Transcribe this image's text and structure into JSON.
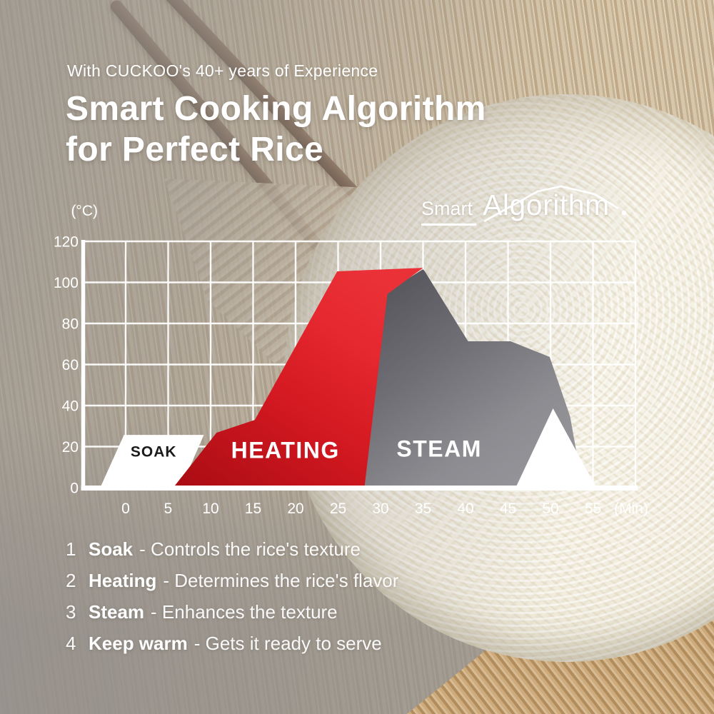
{
  "header": {
    "subtitle": "With CUCKOO's 40+ years of Experience",
    "title_line1": "Smart Cooking Algorithm",
    "title_line2": "for Perfect Rice"
  },
  "logo": {
    "small": "Smart",
    "large": "Algorithm"
  },
  "colors": {
    "heating_red": "#da1f26",
    "heating_red_dark": "#a90c14",
    "steam_gray_dark": "#55545a",
    "steam_gray_light": "#98979c",
    "soak_white": "#ffffff",
    "text_white": "#ffffff",
    "soak_label_black": "#1b1b1b"
  },
  "chart_data": {
    "type": "area",
    "title": "Smart Algorithm",
    "ylabel": "(°C)",
    "xlabel": "(Min)",
    "xlim": [
      -5,
      60
    ],
    "ylim": [
      0,
      120
    ],
    "x_ticks": [
      0,
      5,
      10,
      15,
      20,
      25,
      30,
      35,
      40,
      45,
      50,
      55
    ],
    "y_ticks": [
      0,
      20,
      40,
      60,
      80,
      100,
      120
    ],
    "grid": true,
    "phases": [
      {
        "name": "SOAK",
        "fill": "white",
        "label_color": "#1b1b1b",
        "label_pos": [
          3.3,
          17.8
        ],
        "time_range_min": [
          0,
          6
        ],
        "peak_temp_c": 26,
        "points": [
          [
            -3.0,
            0
          ],
          [
            -0.2,
            25.7
          ],
          [
            9.2,
            25.7
          ],
          [
            6.5,
            0
          ]
        ]
      },
      {
        "name": "STEAM",
        "fill": "gray-gradient",
        "label_color": "#ffffff",
        "label_pos": [
          36.9,
          19.2
        ],
        "time_range_min": [
          28,
          53
        ],
        "peak_temp_c": 106,
        "points": [
          [
            35.0,
            106.4
          ],
          [
            30.6,
            95.0
          ],
          [
            27.6,
            0
          ],
          [
            53.8,
            0
          ],
          [
            52.3,
            34.8
          ],
          [
            49.9,
            63.7
          ],
          [
            45.3,
            71.3
          ],
          [
            40.3,
            71.3
          ],
          [
            35.2,
            105.4
          ]
        ]
      },
      {
        "name": "HEATING",
        "fill": "red-gradient",
        "label_color": "#ffffff",
        "label_pos": [
          18.8,
          18.4
        ],
        "time_range_min": [
          6,
          30
        ],
        "peak_temp_c": 106,
        "points": [
          [
            5.6,
            0
          ],
          [
            10.7,
            26.8
          ],
          [
            15.2,
            33.0
          ],
          [
            24.9,
            105.4
          ],
          [
            35.0,
            107.1
          ],
          [
            30.8,
            94.3
          ],
          [
            28.1,
            0
          ]
        ]
      },
      {
        "name": "KEEP WARM",
        "fill": "white",
        "label_color": null,
        "label_pos": null,
        "time_range_min": [
          46,
          55
        ],
        "peak_temp_c": 39,
        "points": [
          [
            50.3,
            38.6
          ],
          [
            45.9,
            0
          ],
          [
            55.4,
            0
          ]
        ]
      }
    ]
  },
  "legend": {
    "items": [
      {
        "num": "1",
        "name": "Soak",
        "desc": "- Controls the rice's texture"
      },
      {
        "num": "2",
        "name": "Heating",
        "desc": "- Determines the rice's flavor"
      },
      {
        "num": "3",
        "name": "Steam",
        "desc": "- Enhances the texture"
      },
      {
        "num": "4",
        "name": "Keep warm",
        "desc": "- Gets it ready to serve"
      }
    ]
  }
}
